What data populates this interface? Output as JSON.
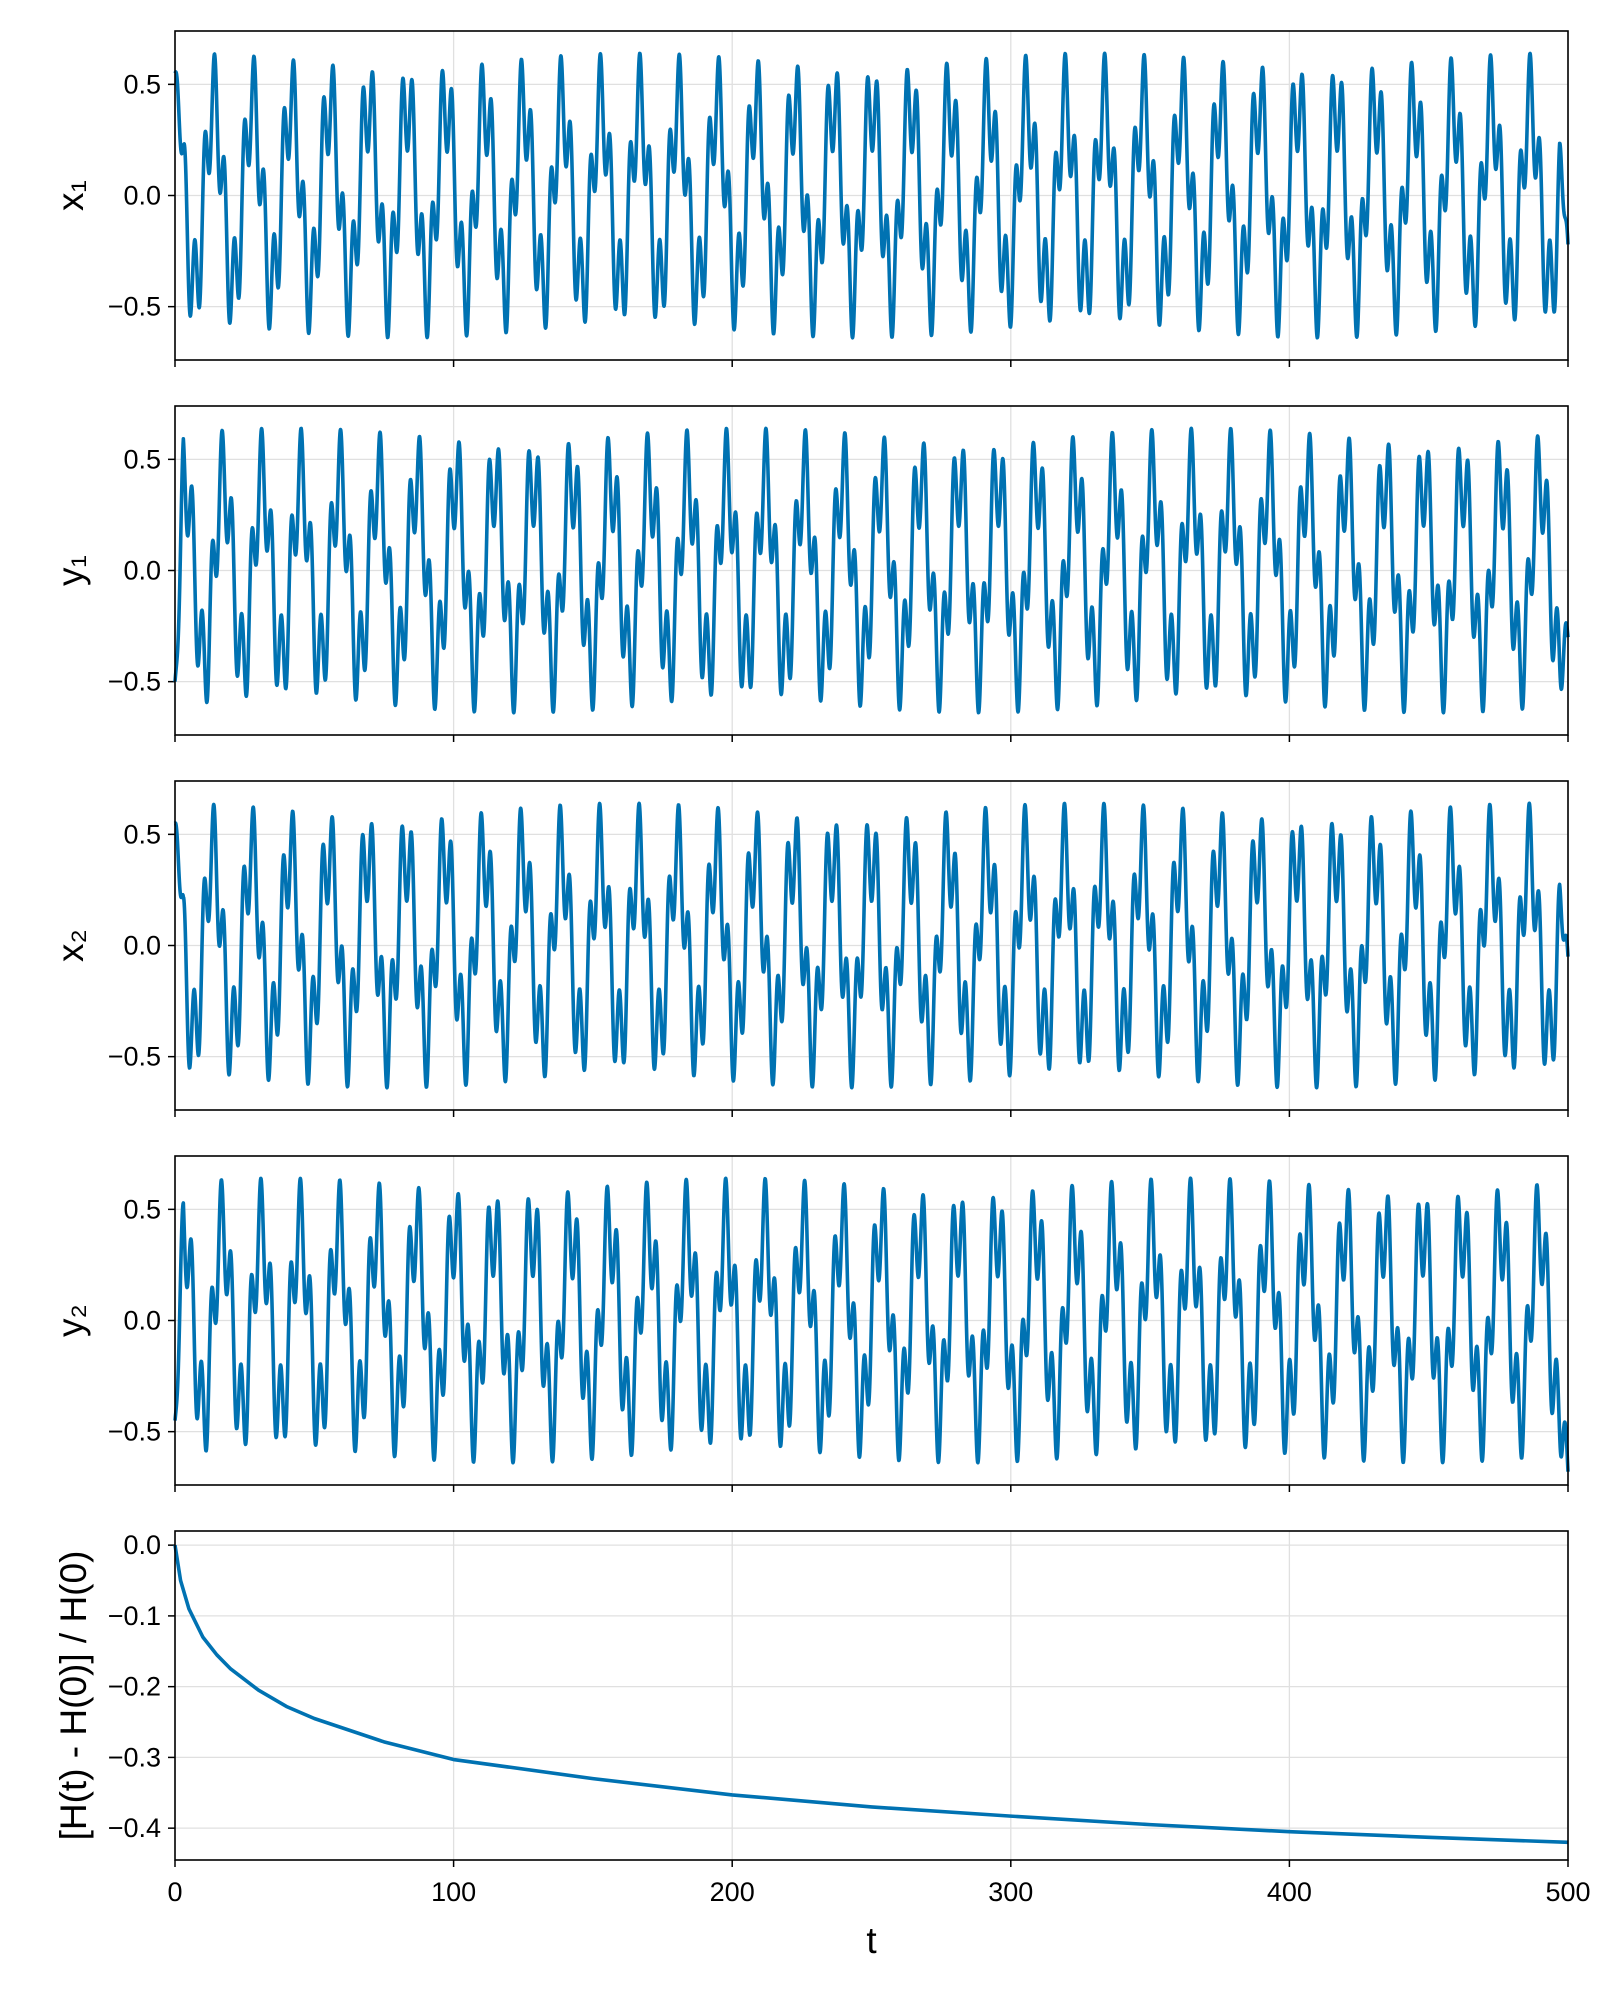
{
  "chart_data": [
    {
      "type": "line",
      "ylabel": "x₁",
      "xlabel": "",
      "xlim": [
        0,
        500
      ],
      "ylim": [
        -0.74,
        0.74
      ],
      "yticks": [
        {
          "v": 0.5,
          "label": "0.5"
        },
        {
          "v": 0.0,
          "label": "0.0"
        },
        {
          "v": -0.5,
          "label": "−0.5"
        }
      ],
      "grid": true,
      "series": [
        {
          "kind": "oscillation",
          "phase": 0.0,
          "amplitude": 0.64,
          "start": 0.55,
          "end": -0.22
        }
      ]
    },
    {
      "type": "line",
      "ylabel": "y₁",
      "xlabel": "",
      "xlim": [
        0,
        500
      ],
      "ylim": [
        -0.74,
        0.74
      ],
      "yticks": [
        {
          "v": 0.5,
          "label": "0.5"
        },
        {
          "v": 0.0,
          "label": "0.0"
        },
        {
          "v": -0.5,
          "label": "−0.5"
        }
      ],
      "grid": true,
      "series": [
        {
          "kind": "oscillation",
          "phase": -1.5708,
          "amplitude": 0.64,
          "start": -0.5,
          "end": -0.3
        }
      ]
    },
    {
      "type": "line",
      "ylabel": "x₂",
      "xlabel": "",
      "xlim": [
        0,
        500
      ],
      "ylim": [
        -0.74,
        0.74
      ],
      "yticks": [
        {
          "v": 0.5,
          "label": "0.5"
        },
        {
          "v": 0.0,
          "label": "0.0"
        },
        {
          "v": -0.5,
          "label": "−0.5"
        }
      ],
      "grid": true,
      "series": [
        {
          "kind": "oscillation",
          "phase": 0.15,
          "amplitude": 0.64,
          "start": 0.55,
          "end": -0.05
        }
      ]
    },
    {
      "type": "line",
      "ylabel": "y₂",
      "xlabel": "",
      "xlim": [
        0,
        500
      ],
      "ylim": [
        -0.74,
        0.74
      ],
      "yticks": [
        {
          "v": 0.5,
          "label": "0.5"
        },
        {
          "v": 0.0,
          "label": "0.0"
        },
        {
          "v": -0.5,
          "label": "−0.5"
        }
      ],
      "grid": true,
      "series": [
        {
          "kind": "oscillation",
          "phase": -1.42,
          "amplitude": 0.64,
          "start": -0.45,
          "end": -0.68
        }
      ]
    },
    {
      "type": "line",
      "ylabel": "[H(t) - H(0)] / H(0)",
      "xlabel": "t",
      "xlim": [
        0,
        500
      ],
      "ylim": [
        -0.445,
        0.02
      ],
      "xticks": [
        {
          "v": 0,
          "label": "0"
        },
        {
          "v": 100,
          "label": "100"
        },
        {
          "v": 200,
          "label": "200"
        },
        {
          "v": 300,
          "label": "300"
        },
        {
          "v": 400,
          "label": "400"
        },
        {
          "v": 500,
          "label": "500"
        }
      ],
      "yticks": [
        {
          "v": 0.0,
          "label": "0.0"
        },
        {
          "v": -0.1,
          "label": "−0.1"
        },
        {
          "v": -0.2,
          "label": "−0.2"
        },
        {
          "v": -0.3,
          "label": "−0.3"
        },
        {
          "v": -0.4,
          "label": "−0.4"
        }
      ],
      "grid": true,
      "series": [
        {
          "kind": "curve",
          "x": [
            0,
            2,
            5,
            10,
            15,
            20,
            30,
            40,
            50,
            75,
            100,
            150,
            200,
            250,
            300,
            350,
            400,
            450,
            500
          ],
          "y": [
            0.0,
            -0.05,
            -0.09,
            -0.13,
            -0.155,
            -0.175,
            -0.205,
            -0.228,
            -0.245,
            -0.278,
            -0.303,
            -0.33,
            -0.353,
            -0.37,
            -0.383,
            -0.395,
            -0.405,
            -0.413,
            -0.42
          ]
        }
      ]
    }
  ],
  "colors": {
    "series": "#0072b2",
    "grid": "#e0e0e0",
    "frame": "#000000",
    "background": "#ffffff"
  }
}
